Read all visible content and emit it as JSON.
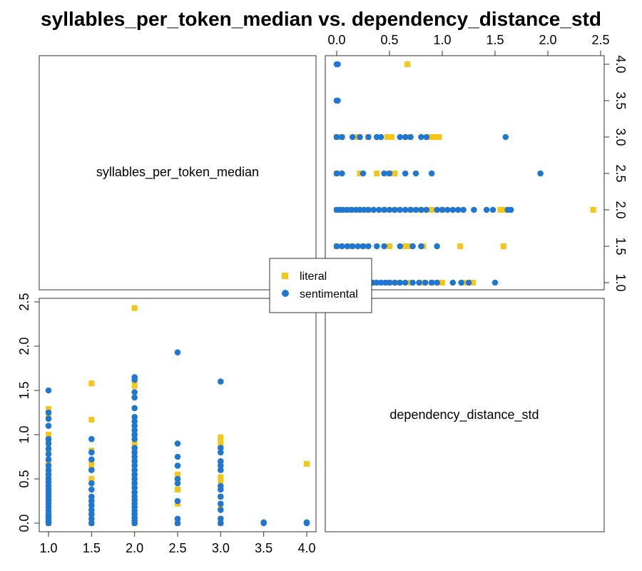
{
  "chart_data": {
    "type": "scatter",
    "title": "syllables_per_token_median vs. dependency_distance_std",
    "variables": [
      "syllables_per_token_median",
      "dependency_distance_std"
    ],
    "var_ranges": {
      "syllables_per_token_median": [
        1.0,
        4.0
      ],
      "dependency_distance_std": [
        0.0,
        2.5
      ]
    },
    "ticks": {
      "syllables_per_token_median": [
        "1.0",
        "1.5",
        "2.0",
        "2.5",
        "3.0",
        "3.5",
        "4.0"
      ],
      "dependency_distance_std": [
        "0.0",
        "0.5",
        "1.0",
        "1.5",
        "2.0",
        "2.5"
      ]
    },
    "legend": {
      "position": "center",
      "entries": [
        "literal",
        "sentimental"
      ]
    },
    "colors": {
      "literal": "#f5c518",
      "sentimental": "#1f77d4"
    },
    "series": [
      {
        "name": "literal",
        "marker": "square",
        "points": [
          [
            1.0,
            0.0
          ],
          [
            1.0,
            0.05
          ],
          [
            1.0,
            0.12
          ],
          [
            1.0,
            0.25
          ],
          [
            1.0,
            0.35
          ],
          [
            1.0,
            0.5
          ],
          [
            1.0,
            0.58
          ],
          [
            1.0,
            0.7
          ],
          [
            1.0,
            0.8
          ],
          [
            1.0,
            0.9
          ],
          [
            1.0,
            0.98
          ],
          [
            1.0,
            1.0
          ],
          [
            1.0,
            1.2
          ],
          [
            1.0,
            1.29
          ],
          [
            1.5,
            0.0
          ],
          [
            1.5,
            0.12
          ],
          [
            1.5,
            0.25
          ],
          [
            1.5,
            0.5
          ],
          [
            1.5,
            0.65
          ],
          [
            1.5,
            0.7
          ],
          [
            1.5,
            0.82
          ],
          [
            1.5,
            1.17
          ],
          [
            1.5,
            1.58
          ],
          [
            2.0,
            0.0
          ],
          [
            2.0,
            0.1
          ],
          [
            2.0,
            0.2
          ],
          [
            2.0,
            0.3
          ],
          [
            2.0,
            0.45
          ],
          [
            2.0,
            0.55
          ],
          [
            2.0,
            0.7
          ],
          [
            2.0,
            0.8
          ],
          [
            2.0,
            0.9
          ],
          [
            2.0,
            1.0
          ],
          [
            2.0,
            1.55
          ],
          [
            2.0,
            1.6
          ],
          [
            2.0,
            2.43
          ],
          [
            2.5,
            0.0
          ],
          [
            2.5,
            0.22
          ],
          [
            2.5,
            0.38
          ],
          [
            2.5,
            0.5
          ],
          [
            2.5,
            0.55
          ],
          [
            3.0,
            0.0
          ],
          [
            3.0,
            0.05
          ],
          [
            3.0,
            0.2
          ],
          [
            3.0,
            0.3
          ],
          [
            3.0,
            0.48
          ],
          [
            3.0,
            0.52
          ],
          [
            3.0,
            0.68
          ],
          [
            3.0,
            0.88
          ],
          [
            3.0,
            0.92
          ],
          [
            3.0,
            0.97
          ],
          [
            4.0,
            0.67
          ]
        ]
      },
      {
        "name": "sentimental",
        "marker": "circle",
        "points": [
          [
            1.0,
            0.0
          ],
          [
            1.0,
            0.02
          ],
          [
            1.0,
            0.05
          ],
          [
            1.0,
            0.08
          ],
          [
            1.0,
            0.1
          ],
          [
            1.0,
            0.14
          ],
          [
            1.0,
            0.18
          ],
          [
            1.0,
            0.22
          ],
          [
            1.0,
            0.26
          ],
          [
            1.0,
            0.3
          ],
          [
            1.0,
            0.34
          ],
          [
            1.0,
            0.38
          ],
          [
            1.0,
            0.42
          ],
          [
            1.0,
            0.46
          ],
          [
            1.0,
            0.5
          ],
          [
            1.0,
            0.55
          ],
          [
            1.0,
            0.6
          ],
          [
            1.0,
            0.65
          ],
          [
            1.0,
            0.72
          ],
          [
            1.0,
            0.78
          ],
          [
            1.0,
            0.84
          ],
          [
            1.0,
            0.9
          ],
          [
            1.0,
            0.95
          ],
          [
            1.0,
            1.1
          ],
          [
            1.0,
            1.18
          ],
          [
            1.0,
            1.25
          ],
          [
            1.0,
            1.5
          ],
          [
            1.5,
            0.0
          ],
          [
            1.5,
            0.05
          ],
          [
            1.5,
            0.1
          ],
          [
            1.5,
            0.15
          ],
          [
            1.5,
            0.2
          ],
          [
            1.5,
            0.25
          ],
          [
            1.5,
            0.3
          ],
          [
            1.5,
            0.38
          ],
          [
            1.5,
            0.45
          ],
          [
            1.5,
            0.6
          ],
          [
            1.5,
            0.72
          ],
          [
            1.5,
            0.8
          ],
          [
            1.5,
            0.95
          ],
          [
            2.0,
            0.0
          ],
          [
            2.0,
            0.03
          ],
          [
            2.0,
            0.06
          ],
          [
            2.0,
            0.1
          ],
          [
            2.0,
            0.14
          ],
          [
            2.0,
            0.18
          ],
          [
            2.0,
            0.22
          ],
          [
            2.0,
            0.26
          ],
          [
            2.0,
            0.3
          ],
          [
            2.0,
            0.35
          ],
          [
            2.0,
            0.4
          ],
          [
            2.0,
            0.45
          ],
          [
            2.0,
            0.5
          ],
          [
            2.0,
            0.55
          ],
          [
            2.0,
            0.6
          ],
          [
            2.0,
            0.65
          ],
          [
            2.0,
            0.7
          ],
          [
            2.0,
            0.75
          ],
          [
            2.0,
            0.8
          ],
          [
            2.0,
            0.85
          ],
          [
            2.0,
            0.95
          ],
          [
            2.0,
            1.0
          ],
          [
            2.0,
            1.05
          ],
          [
            2.0,
            1.1
          ],
          [
            2.0,
            1.15
          ],
          [
            2.0,
            1.2
          ],
          [
            2.0,
            1.3
          ],
          [
            2.0,
            1.42
          ],
          [
            2.0,
            1.48
          ],
          [
            2.0,
            1.62
          ],
          [
            2.0,
            1.65
          ],
          [
            2.5,
            0.0
          ],
          [
            2.5,
            0.05
          ],
          [
            2.5,
            0.25
          ],
          [
            2.5,
            0.45
          ],
          [
            2.5,
            0.5
          ],
          [
            2.5,
            0.65
          ],
          [
            2.5,
            0.75
          ],
          [
            2.5,
            0.9
          ],
          [
            2.5,
            1.93
          ],
          [
            3.0,
            0.0
          ],
          [
            3.0,
            0.05
          ],
          [
            3.0,
            0.15
          ],
          [
            3.0,
            0.22
          ],
          [
            3.0,
            0.3
          ],
          [
            3.0,
            0.38
          ],
          [
            3.0,
            0.42
          ],
          [
            3.0,
            0.6
          ],
          [
            3.0,
            0.65
          ],
          [
            3.0,
            0.7
          ],
          [
            3.0,
            0.8
          ],
          [
            3.0,
            0.85
          ],
          [
            3.0,
            1.6
          ],
          [
            3.5,
            0.0
          ],
          [
            3.5,
            0.01
          ],
          [
            4.0,
            0.0
          ],
          [
            4.0,
            0.01
          ]
        ]
      }
    ]
  }
}
